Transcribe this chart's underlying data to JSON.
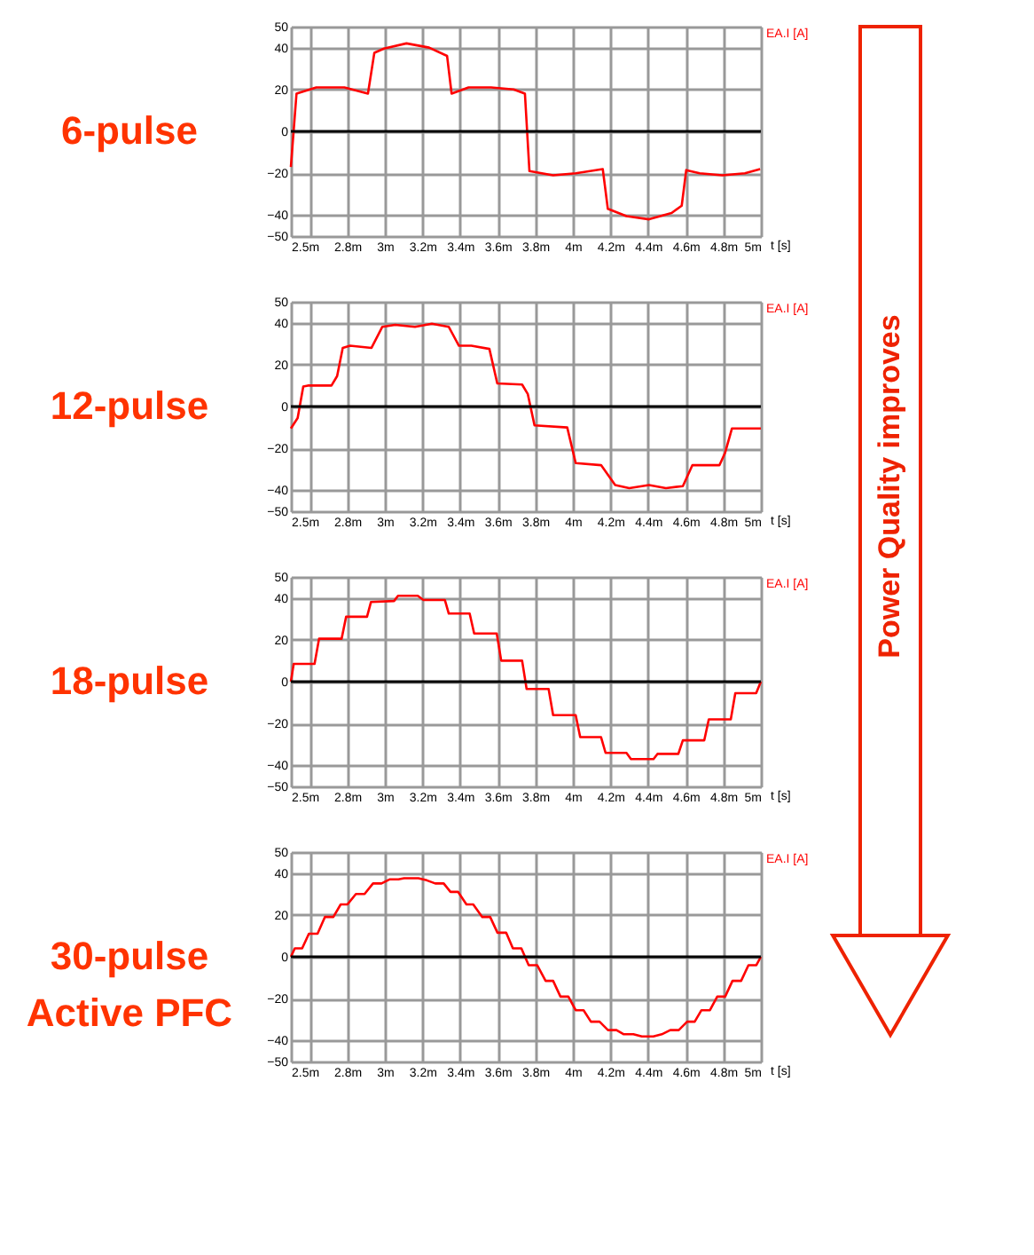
{
  "chart_data": [
    {
      "type": "line",
      "title": "6-pulse",
      "xlabel": "t [s]",
      "legend": "top right",
      "grid": true,
      "annotations": [
        "Power Quality improves"
      ],
      "xlim": [
        2.5,
        5
      ],
      "ylim": [
        -50,
        50
      ],
      "xticks": [
        {
          "value": 2.5,
          "label": "2.5m"
        },
        {
          "value": 2.6,
          "label": null
        },
        {
          "value": 2.8,
          "label": "2.8m"
        },
        {
          "value": 3,
          "label": "3m"
        },
        {
          "value": 3.2,
          "label": "3.2m"
        },
        {
          "value": 3.4,
          "label": "3.4m"
        },
        {
          "value": 3.6,
          "label": "3.6m"
        },
        {
          "value": 3.8,
          "label": "3.8m"
        },
        {
          "value": 4,
          "label": "4m"
        },
        {
          "value": 4.2,
          "label": "4.2m"
        },
        {
          "value": 4.4,
          "label": "4.4m"
        },
        {
          "value": 4.6,
          "label": "4.6m"
        },
        {
          "value": 4.8,
          "label": "4.8m"
        },
        {
          "value": 5,
          "label": "5m"
        }
      ],
      "yticks": [
        -50,
        -40,
        -20,
        0,
        20,
        40,
        50
      ],
      "ref_lines": [
        {
          "axis": "y",
          "value": 0,
          "color": "#000000"
        }
      ],
      "series": [
        {
          "name": "EA.I [A]",
          "color": "#ff0000",
          "x": [
            2.5,
            2.53,
            2.635,
            2.785,
            2.91,
            2.944,
            2.995,
            3.115,
            3.235,
            3.331,
            3.355,
            3.445,
            3.565,
            3.685,
            3.745,
            3.769,
            3.895,
            4.015,
            4.159,
            4.186,
            4.285,
            4.405,
            4.525,
            4.579,
            4.603,
            4.675,
            4.795,
            4.915,
            4.996
          ],
          "values": [
            -17,
            18,
            21,
            21,
            18,
            37.5,
            39.5,
            42,
            40,
            36,
            18,
            21,
            21,
            20,
            18,
            -19,
            -21,
            -20,
            -18,
            -37,
            -40.5,
            -42,
            -39,
            -35.5,
            -18.5,
            -20,
            -21,
            -20,
            -18
          ]
        }
      ]
    },
    {
      "type": "line",
      "title": "12-pulse",
      "xlabel": "t [s]",
      "legend": "top right",
      "grid": true,
      "xlim": [
        2.5,
        5
      ],
      "ylim": [
        -50,
        50
      ],
      "xticks": [
        {
          "value": 2.5,
          "label": "2.5m"
        },
        {
          "value": 2.6,
          "label": null
        },
        {
          "value": 2.8,
          "label": "2.8m"
        },
        {
          "value": 3,
          "label": "3m"
        },
        {
          "value": 3.2,
          "label": "3.2m"
        },
        {
          "value": 3.4,
          "label": "3.4m"
        },
        {
          "value": 3.6,
          "label": "3.6m"
        },
        {
          "value": 3.8,
          "label": "3.8m"
        },
        {
          "value": 4,
          "label": "4m"
        },
        {
          "value": 4.2,
          "label": "4.2m"
        },
        {
          "value": 4.4,
          "label": "4.4m"
        },
        {
          "value": 4.6,
          "label": "4.6m"
        },
        {
          "value": 4.8,
          "label": "4.8m"
        },
        {
          "value": 5,
          "label": "5m"
        }
      ],
      "yticks": [
        -50,
        -40,
        -20,
        0,
        20,
        40,
        50
      ],
      "ref_lines": [
        {
          "axis": "y",
          "value": 0,
          "color": "#000000"
        }
      ],
      "series": [
        {
          "name": "EA.I [A]",
          "color": "#ff0000",
          "x": [
            2.5,
            2.536,
            2.566,
            2.59,
            2.716,
            2.746,
            2.776,
            2.815,
            2.929,
            2.986,
            3.055,
            3.16,
            3.25,
            3.34,
            3.394,
            3.46,
            3.556,
            3.598,
            3.73,
            3.76,
            3.796,
            3.97,
            4.015,
            4.15,
            4.225,
            4.3,
            4.405,
            4.495,
            4.585,
            4.636,
            4.78,
            4.81,
            4.846,
            5
          ],
          "values": [
            -10.5,
            -5.5,
            9.5,
            10,
            10,
            14.5,
            28,
            29,
            28,
            38,
            39,
            38,
            39.5,
            38,
            29,
            29,
            27.5,
            11,
            10.5,
            6,
            -9,
            -10,
            -27,
            -28,
            -37.5,
            -39,
            -37.5,
            -39,
            -38,
            -28,
            -28,
            -22,
            -10.5,
            -10.5
          ]
        }
      ]
    },
    {
      "type": "line",
      "title": "18-pulse",
      "xlabel": "t [s]",
      "legend": "top right",
      "grid": true,
      "xlim": [
        2.5,
        5
      ],
      "ylim": [
        -50,
        50
      ],
      "xticks": [
        {
          "value": 2.5,
          "label": "2.5m"
        },
        {
          "value": 2.6,
          "label": null
        },
        {
          "value": 2.8,
          "label": "2.8m"
        },
        {
          "value": 3,
          "label": "3m"
        },
        {
          "value": 3.2,
          "label": "3.2m"
        },
        {
          "value": 3.4,
          "label": "3.4m"
        },
        {
          "value": 3.6,
          "label": "3.6m"
        },
        {
          "value": 3.8,
          "label": "3.8m"
        },
        {
          "value": 4,
          "label": "4m"
        },
        {
          "value": 4.2,
          "label": "4.2m"
        },
        {
          "value": 4.4,
          "label": "4.4m"
        },
        {
          "value": 4.6,
          "label": "4.6m"
        },
        {
          "value": 4.8,
          "label": "4.8m"
        },
        {
          "value": 5,
          "label": "5m"
        }
      ],
      "yticks": [
        -50,
        -40,
        -20,
        0,
        20,
        40,
        50
      ],
      "ref_lines": [
        {
          "axis": "y",
          "value": 0,
          "color": "#000000"
        }
      ],
      "series": [
        {
          "name": "EA.I [A]",
          "color": "#ff0000",
          "x": [
            2.5,
            2.515,
            2.626,
            2.65,
            2.77,
            2.794,
            2.905,
            2.926,
            3.049,
            3.07,
            3.175,
            3.205,
            3.319,
            3.34,
            3.451,
            3.475,
            3.595,
            3.619,
            3.73,
            3.754,
            3.871,
            3.895,
            4.015,
            4.039,
            4.15,
            4.174,
            4.285,
            4.309,
            4.429,
            4.45,
            4.561,
            4.585,
            4.699,
            4.723,
            4.84,
            4.864,
            4.975,
            5
          ],
          "values": [
            0,
            8.5,
            8.5,
            20.5,
            20.5,
            31,
            31,
            38,
            38.5,
            41,
            41,
            39,
            39,
            32.5,
            32.5,
            23,
            23,
            10,
            10,
            -3.5,
            -3.5,
            -16,
            -16,
            -26.5,
            -26.5,
            -34,
            -34,
            -37,
            -37,
            -34.5,
            -34.5,
            -28,
            -28,
            -18,
            -18,
            -5.5,
            -5.5,
            0
          ]
        }
      ]
    },
    {
      "type": "line",
      "title": "30-pulse\nActive PFC",
      "xlabel": "t [s]",
      "legend": "top right",
      "grid": true,
      "xlim": [
        2.5,
        5
      ],
      "ylim": [
        -50,
        50
      ],
      "xticks": [
        {
          "value": 2.5,
          "label": "2.5m"
        },
        {
          "value": 2.6,
          "label": null
        },
        {
          "value": 2.8,
          "label": "2.8m"
        },
        {
          "value": 3,
          "label": "3m"
        },
        {
          "value": 3.2,
          "label": "3.2m"
        },
        {
          "value": 3.4,
          "label": "3.4m"
        },
        {
          "value": 3.6,
          "label": "3.6m"
        },
        {
          "value": 3.8,
          "label": "3.8m"
        },
        {
          "value": 4,
          "label": "4m"
        },
        {
          "value": 4.2,
          "label": "4.2m"
        },
        {
          "value": 4.4,
          "label": "4.4m"
        },
        {
          "value": 4.6,
          "label": "4.6m"
        },
        {
          "value": 4.8,
          "label": "4.8m"
        },
        {
          "value": 5,
          "label": "5m"
        }
      ],
      "yticks": [
        -50,
        -40,
        -20,
        0,
        20,
        40,
        50
      ],
      "ref_lines": [
        {
          "axis": "y",
          "value": 0,
          "color": "#000000"
        }
      ],
      "series": [
        {
          "name": "EA.I [A]",
          "color": "#ff0000",
          "x": [
            2.5,
            2.521,
            2.56,
            2.596,
            2.642,
            2.681,
            2.726,
            2.765,
            2.801,
            2.846,
            2.892,
            2.937,
            2.982,
            3.027,
            3.072,
            3.102,
            3.178,
            3.223,
            3.268,
            3.313,
            3.349,
            3.389,
            3.434,
            3.47,
            3.518,
            3.56,
            3.599,
            3.645,
            3.681,
            3.726,
            3.765,
            3.81,
            3.855,
            3.895,
            3.934,
            3.976,
            4.015,
            4.057,
            4.096,
            4.142,
            4.187,
            4.232,
            4.271,
            4.322,
            4.367,
            4.428,
            4.473,
            4.518,
            4.563,
            4.608,
            4.648,
            4.684,
            4.729,
            4.768,
            4.81,
            4.849,
            4.895,
            4.934,
            4.976,
            5
          ],
          "values": [
            0,
            4,
            4,
            11,
            11,
            19,
            19,
            25,
            25,
            30,
            30,
            35,
            35,
            37,
            37,
            37.5,
            37.5,
            36.5,
            35,
            35,
            31,
            31,
            25,
            25,
            19,
            19,
            11.5,
            11.5,
            4,
            4,
            -4,
            -4,
            -11.5,
            -11.5,
            -19,
            -19,
            -25.5,
            -25.5,
            -31,
            -31,
            -35,
            -35,
            -37,
            -37,
            -38,
            -38,
            -37,
            -35,
            -35,
            -31,
            -31,
            -25.5,
            -25.5,
            -19,
            -19,
            -11.5,
            -11.5,
            -4,
            -4,
            0
          ]
        }
      ]
    }
  ]
}
